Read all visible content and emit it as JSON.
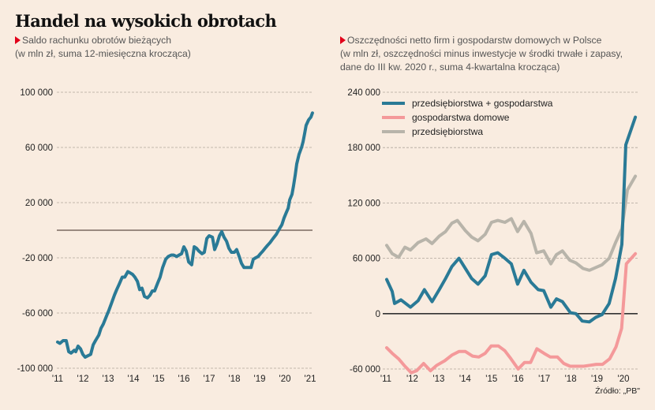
{
  "title": "Handel na wysokich obrotach",
  "source": "Źródło: „PB\"",
  "colors": {
    "background": "#f9ece0",
    "accent_marker": "#e2001a",
    "blue": "#2a7a96",
    "pink": "#f4999a",
    "gray": "#b8b4aa",
    "zero_line_left": "#7a6a60",
    "zero_line_right": "#333333",
    "grid": "#b0a59c"
  },
  "chart_data": [
    {
      "type": "line",
      "title": "Saldo rachunku obrotów bieżących",
      "subtitle": "(w mln zł, suma 12-miesięczna krocząca)",
      "xlabel": "",
      "ylabel": "",
      "ylim": [
        -100000,
        100000
      ],
      "xlim": [
        2011,
        2021
      ],
      "yticks": [
        100000,
        60000,
        20000,
        -20000,
        -60000,
        -100000
      ],
      "ytick_labels": [
        "100 000",
        "60 000",
        "20 000",
        "-20 000",
        "-60 000",
        "-100 000"
      ],
      "xticks": [
        2011,
        2012,
        2013,
        2014,
        2015,
        2016,
        2017,
        2018,
        2019,
        2020,
        2021
      ],
      "xtick_labels": [
        "'11",
        "'12",
        "'13",
        "'14",
        "'15",
        "'16",
        "'17",
        "'18",
        "'19",
        "'20",
        "'21"
      ],
      "grid": true,
      "zero_line": true,
      "series": [
        {
          "name": "Saldo rachunku obrotów bieżących",
          "color": "#2a7a96",
          "points": [
            [
              2011.0,
              -81000
            ],
            [
              2011.09,
              -82000
            ],
            [
              2011.22,
              -80000
            ],
            [
              2011.34,
              -80000
            ],
            [
              2011.44,
              -88000
            ],
            [
              2011.53,
              -89000
            ],
            [
              2011.66,
              -87000
            ],
            [
              2011.72,
              -88000
            ],
            [
              2011.81,
              -84000
            ],
            [
              2011.91,
              -86000
            ],
            [
              2012.0,
              -90000
            ],
            [
              2012.09,
              -92000
            ],
            [
              2012.19,
              -91000
            ],
            [
              2012.31,
              -90000
            ],
            [
              2012.41,
              -83000
            ],
            [
              2012.5,
              -80000
            ],
            [
              2012.63,
              -76000
            ],
            [
              2012.72,
              -71000
            ],
            [
              2012.81,
              -68000
            ],
            [
              2012.94,
              -62000
            ],
            [
              2013.03,
              -58000
            ],
            [
              2013.13,
              -53000
            ],
            [
              2013.25,
              -47000
            ],
            [
              2013.34,
              -43000
            ],
            [
              2013.44,
              -39000
            ],
            [
              2013.56,
              -34000
            ],
            [
              2013.66,
              -34000
            ],
            [
              2013.78,
              -30000
            ],
            [
              2013.88,
              -31000
            ],
            [
              2013.97,
              -32000
            ],
            [
              2014.06,
              -34000
            ],
            [
              2014.16,
              -37000
            ],
            [
              2014.25,
              -43000
            ],
            [
              2014.34,
              -42000
            ],
            [
              2014.44,
              -48000
            ],
            [
              2014.56,
              -49000
            ],
            [
              2014.66,
              -47000
            ],
            [
              2014.75,
              -44000
            ],
            [
              2014.84,
              -44000
            ],
            [
              2014.97,
              -38000
            ],
            [
              2015.06,
              -34000
            ],
            [
              2015.16,
              -27000
            ],
            [
              2015.28,
              -21000
            ],
            [
              2015.38,
              -19000
            ],
            [
              2015.5,
              -18000
            ],
            [
              2015.59,
              -18000
            ],
            [
              2015.72,
              -19000
            ],
            [
              2015.81,
              -18000
            ],
            [
              2015.91,
              -17000
            ],
            [
              2016.0,
              -12000
            ],
            [
              2016.09,
              -15000
            ],
            [
              2016.19,
              -23000
            ],
            [
              2016.31,
              -25000
            ],
            [
              2016.41,
              -12000
            ],
            [
              2016.5,
              -13000
            ],
            [
              2016.59,
              -15000
            ],
            [
              2016.72,
              -17000
            ],
            [
              2016.81,
              -16000
            ],
            [
              2016.91,
              -6000
            ],
            [
              2017.0,
              -4000
            ],
            [
              2017.13,
              -5000
            ],
            [
              2017.22,
              -14000
            ],
            [
              2017.31,
              -10000
            ],
            [
              2017.41,
              -4000
            ],
            [
              2017.5,
              -1000
            ],
            [
              2017.59,
              -5000
            ],
            [
              2017.69,
              -8000
            ],
            [
              2017.78,
              -13000
            ],
            [
              2017.88,
              -16000
            ],
            [
              2018.0,
              -16000
            ],
            [
              2018.09,
              -14000
            ],
            [
              2018.19,
              -19000
            ],
            [
              2018.28,
              -24000
            ],
            [
              2018.38,
              -27000
            ],
            [
              2018.47,
              -27000
            ],
            [
              2018.56,
              -27000
            ],
            [
              2018.66,
              -27000
            ],
            [
              2018.75,
              -21000
            ],
            [
              2018.84,
              -20000
            ],
            [
              2018.94,
              -19000
            ],
            [
              2019.03,
              -17000
            ],
            [
              2019.13,
              -15000
            ],
            [
              2019.22,
              -13000
            ],
            [
              2019.31,
              -11000
            ],
            [
              2019.41,
              -9000
            ],
            [
              2019.53,
              -6000
            ],
            [
              2019.66,
              -3000
            ],
            [
              2019.78,
              1000
            ],
            [
              2019.88,
              4000
            ],
            [
              2019.97,
              9000
            ],
            [
              2020.06,
              13000
            ],
            [
              2020.13,
              16000
            ],
            [
              2020.19,
              22000
            ],
            [
              2020.28,
              26000
            ],
            [
              2020.34,
              32000
            ],
            [
              2020.41,
              40000
            ],
            [
              2020.47,
              48000
            ],
            [
              2020.56,
              55000
            ],
            [
              2020.66,
              60000
            ],
            [
              2020.72,
              64000
            ],
            [
              2020.78,
              70000
            ],
            [
              2020.84,
              76000
            ],
            [
              2020.94,
              80000
            ],
            [
              2021.03,
              82000
            ],
            [
              2021.09,
              85000
            ]
          ]
        }
      ]
    },
    {
      "type": "line",
      "title": "Oszczędności netto firm i gospodarstw domowych w Polsce",
      "subtitle": "(w mln zł, oszczędności minus inwestycje w środki trwałe i zapasy,",
      "subtitle2": "dane do III kw. 2020 r., suma 4-kwartalna krocząca)",
      "xlabel": "",
      "ylabel": "",
      "ylim": [
        -60000,
        240000
      ],
      "xlim": [
        2011,
        2020.6
      ],
      "yticks": [
        240000,
        180000,
        120000,
        60000,
        0,
        -60000
      ],
      "ytick_labels": [
        "240 000",
        "180 000",
        "120 000",
        "60 000",
        "0",
        "-60 000"
      ],
      "xticks": [
        2011,
        2012,
        2013,
        2014,
        2015,
        2016,
        2017,
        2018,
        2019,
        2020
      ],
      "xtick_labels": [
        "'11",
        "'12",
        "'13",
        "'14",
        "'15",
        "'16",
        "'17",
        "'18",
        "'19",
        "'20"
      ],
      "grid": true,
      "zero_line": true,
      "legend": "top-left",
      "series": [
        {
          "name": "przedsiębiorstwa + gospodarstwa",
          "color": "#2a7a96",
          "points": [
            [
              2011.03,
              37000
            ],
            [
              2011.24,
              24000
            ],
            [
              2011.33,
              11000
            ],
            [
              2011.57,
              15000
            ],
            [
              2011.93,
              7000
            ],
            [
              2012.22,
              14000
            ],
            [
              2012.46,
              26000
            ],
            [
              2012.75,
              13000
            ],
            [
              2013.02,
              26000
            ],
            [
              2013.26,
              38000
            ],
            [
              2013.5,
              51000
            ],
            [
              2013.77,
              60000
            ],
            [
              2014.01,
              49000
            ],
            [
              2014.25,
              38000
            ],
            [
              2014.49,
              32000
            ],
            [
              2014.76,
              41000
            ],
            [
              2015.0,
              64000
            ],
            [
              2015.24,
              66000
            ],
            [
              2015.51,
              60000
            ],
            [
              2015.75,
              54000
            ],
            [
              2015.99,
              32000
            ],
            [
              2016.23,
              47000
            ],
            [
              2016.5,
              34000
            ],
            [
              2016.77,
              26000
            ],
            [
              2016.98,
              25000
            ],
            [
              2017.25,
              7000
            ],
            [
              2017.46,
              16000
            ],
            [
              2017.69,
              13000
            ],
            [
              2017.99,
              1000
            ],
            [
              2018.2,
              0
            ],
            [
              2018.44,
              -8000
            ],
            [
              2018.71,
              -9000
            ],
            [
              2018.95,
              -4000
            ],
            [
              2019.19,
              -1000
            ],
            [
              2019.46,
              11000
            ],
            [
              2019.7,
              38000
            ],
            [
              2019.94,
              75000
            ],
            [
              2020.09,
              183000
            ],
            [
              2020.45,
              213000
            ]
          ]
        },
        {
          "name": "gospodarstwa domowe",
          "color": "#f4999a",
          "points": [
            [
              2011.03,
              -37000
            ],
            [
              2011.24,
              -43000
            ],
            [
              2011.48,
              -49000
            ],
            [
              2011.72,
              -57000
            ],
            [
              2011.96,
              -64000
            ],
            [
              2012.16,
              -62000
            ],
            [
              2012.43,
              -54000
            ],
            [
              2012.69,
              -62000
            ],
            [
              2012.93,
              -56000
            ],
            [
              2013.23,
              -51000
            ],
            [
              2013.5,
              -45000
            ],
            [
              2013.77,
              -41000
            ],
            [
              2014.01,
              -41000
            ],
            [
              2014.28,
              -46000
            ],
            [
              2014.52,
              -47000
            ],
            [
              2014.76,
              -43000
            ],
            [
              2014.99,
              -35000
            ],
            [
              2015.26,
              -35000
            ],
            [
              2015.5,
              -40000
            ],
            [
              2015.74,
              -49000
            ],
            [
              2016.01,
              -60000
            ],
            [
              2016.25,
              -53000
            ],
            [
              2016.48,
              -53000
            ],
            [
              2016.72,
              -38000
            ],
            [
              2016.99,
              -43000
            ],
            [
              2017.23,
              -47000
            ],
            [
              2017.5,
              -47000
            ],
            [
              2017.74,
              -54000
            ],
            [
              2017.98,
              -57000
            ],
            [
              2018.25,
              -57000
            ],
            [
              2018.49,
              -57000
            ],
            [
              2018.73,
              -56000
            ],
            [
              2018.97,
              -55000
            ],
            [
              2019.21,
              -55000
            ],
            [
              2019.48,
              -49000
            ],
            [
              2019.72,
              -36000
            ],
            [
              2019.93,
              -16000
            ],
            [
              2020.11,
              54000
            ],
            [
              2020.45,
              65000
            ]
          ]
        },
        {
          "name": "przedsiębiorstwa",
          "color": "#b8b4aa",
          "points": [
            [
              2011.03,
              74000
            ],
            [
              2011.24,
              65000
            ],
            [
              2011.48,
              61000
            ],
            [
              2011.72,
              72000
            ],
            [
              2011.93,
              69000
            ],
            [
              2012.22,
              77000
            ],
            [
              2012.52,
              81000
            ],
            [
              2012.75,
              76000
            ],
            [
              2013.02,
              84000
            ],
            [
              2013.26,
              89000
            ],
            [
              2013.5,
              98000
            ],
            [
              2013.71,
              101000
            ],
            [
              2014.01,
              90000
            ],
            [
              2014.25,
              83000
            ],
            [
              2014.49,
              79000
            ],
            [
              2014.76,
              86000
            ],
            [
              2015.0,
              99000
            ],
            [
              2015.24,
              101000
            ],
            [
              2015.51,
              99000
            ],
            [
              2015.75,
              103000
            ],
            [
              2015.99,
              89000
            ],
            [
              2016.23,
              100000
            ],
            [
              2016.5,
              87000
            ],
            [
              2016.71,
              66000
            ],
            [
              2016.98,
              68000
            ],
            [
              2017.25,
              54000
            ],
            [
              2017.46,
              64000
            ],
            [
              2017.69,
              68000
            ],
            [
              2017.96,
              58000
            ],
            [
              2018.2,
              55000
            ],
            [
              2018.47,
              49000
            ],
            [
              2018.71,
              47000
            ],
            [
              2018.95,
              50000
            ],
            [
              2019.19,
              53000
            ],
            [
              2019.46,
              60000
            ],
            [
              2019.7,
              77000
            ],
            [
              2019.94,
              92000
            ],
            [
              2020.15,
              134000
            ],
            [
              2020.45,
              149000
            ]
          ]
        }
      ]
    }
  ]
}
